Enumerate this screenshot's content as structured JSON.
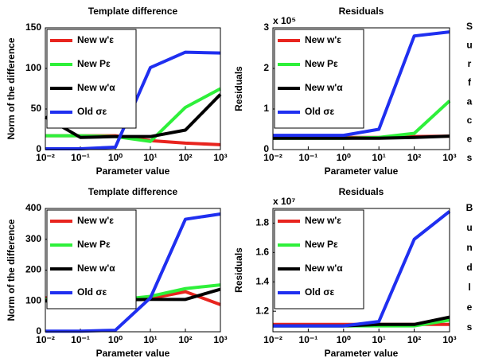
{
  "row_labels": [
    "Surfaces",
    "Bundles"
  ],
  "chart_data": [
    {
      "type": "line",
      "title": "Template difference",
      "xlabel": "Parameter value",
      "ylabel": "Norm of the difference",
      "xscale": "log",
      "x": [
        0.01,
        0.1,
        1,
        10,
        100,
        1000
      ],
      "xlim": [
        0.01,
        1000
      ],
      "xticks": [
        {
          "value": 0.01,
          "label": "10⁻²"
        },
        {
          "value": 0.1,
          "label": "10⁻¹"
        },
        {
          "value": 1,
          "label": "10⁰"
        },
        {
          "value": 10,
          "label": "10¹"
        },
        {
          "value": 100,
          "label": "10²"
        },
        {
          "value": 1000,
          "label": "10³"
        }
      ],
      "ylim": [
        0,
        150
      ],
      "yticks": [
        0,
        50,
        100,
        150
      ],
      "legend": "upper left",
      "series": [
        {
          "name": "New w'ε",
          "color": "#e8241e",
          "values": [
            17,
            17,
            17,
            11,
            8,
            6
          ]
        },
        {
          "name": "New Pε",
          "color": "#2ef03a",
          "values": [
            17,
            17,
            16,
            10,
            52,
            75
          ]
        },
        {
          "name": "New w'α",
          "color": "#000000",
          "values": [
            40,
            15,
            16,
            16,
            24,
            68
          ]
        },
        {
          "name": "Old σε",
          "color": "#1f2ff0",
          "values": [
            1,
            1,
            3,
            101,
            120,
            119
          ]
        }
      ]
    },
    {
      "type": "line",
      "title": "Residuals",
      "xlabel": "Parameter value",
      "ylabel": "Residuals",
      "y_multiplier": "x 10⁵",
      "xscale": "log",
      "x": [
        0.01,
        0.1,
        1,
        10,
        100,
        1000
      ],
      "xlim": [
        0.01,
        1000
      ],
      "xticks": [
        {
          "value": 0.01,
          "label": "10⁻²"
        },
        {
          "value": 0.1,
          "label": "10⁻¹"
        },
        {
          "value": 1,
          "label": "10⁰"
        },
        {
          "value": 10,
          "label": "10¹"
        },
        {
          "value": 100,
          "label": "10²"
        },
        {
          "value": 1000,
          "label": "10³"
        }
      ],
      "ylim": [
        0,
        3
      ],
      "yticks": [
        0,
        1,
        2,
        3
      ],
      "legend": "upper left",
      "series": [
        {
          "name": "New w'ε",
          "color": "#e8241e",
          "values": [
            0.3,
            0.3,
            0.3,
            0.3,
            0.32,
            0.33
          ]
        },
        {
          "name": "New Pε",
          "color": "#2ef03a",
          "values": [
            0.28,
            0.28,
            0.28,
            0.3,
            0.4,
            1.2
          ]
        },
        {
          "name": "New w'α",
          "color": "#000000",
          "values": [
            0.28,
            0.28,
            0.28,
            0.28,
            0.3,
            0.33
          ]
        },
        {
          "name": "Old σε",
          "color": "#1f2ff0",
          "values": [
            0.35,
            0.35,
            0.35,
            0.5,
            2.8,
            2.9
          ]
        }
      ]
    },
    {
      "type": "line",
      "title": "Template difference",
      "xlabel": "Parameter value",
      "ylabel": "Norm of the difference",
      "xscale": "log",
      "x": [
        0.01,
        0.1,
        1,
        10,
        100,
        1000
      ],
      "xlim": [
        0.01,
        1000
      ],
      "xticks": [
        {
          "value": 0.01,
          "label": "10⁻²"
        },
        {
          "value": 0.1,
          "label": "10⁻¹"
        },
        {
          "value": 1,
          "label": "10⁰"
        },
        {
          "value": 10,
          "label": "10¹"
        },
        {
          "value": 100,
          "label": "10²"
        },
        {
          "value": 1000,
          "label": "10³"
        }
      ],
      "ylim": [
        0,
        400
      ],
      "yticks": [
        0,
        100,
        200,
        300,
        400
      ],
      "legend": "upper left",
      "series": [
        {
          "name": "New w'ε",
          "color": "#e8241e",
          "values": [
            110,
            110,
            103,
            108,
            130,
            88
          ]
        },
        {
          "name": "New Pε",
          "color": "#2ef03a",
          "values": [
            105,
            105,
            103,
            115,
            140,
            152
          ]
        },
        {
          "name": "New w'α",
          "color": "#000000",
          "values": [
            100,
            103,
            103,
            105,
            105,
            138
          ]
        },
        {
          "name": "Old σε",
          "color": "#1f2ff0",
          "values": [
            2,
            2,
            5,
            110,
            365,
            382
          ]
        }
      ]
    },
    {
      "type": "line",
      "title": "Residuals",
      "xlabel": "Parameter value",
      "ylabel": "Residuals",
      "y_multiplier": "x 10⁷",
      "xscale": "log",
      "x": [
        0.01,
        0.1,
        1,
        10,
        100,
        1000
      ],
      "xlim": [
        0.01,
        1000
      ],
      "xticks": [
        {
          "value": 0.01,
          "label": "10⁻²"
        },
        {
          "value": 0.1,
          "label": "10⁻¹"
        },
        {
          "value": 1,
          "label": "10⁰"
        },
        {
          "value": 10,
          "label": "10¹"
        },
        {
          "value": 100,
          "label": "10²"
        },
        {
          "value": 1000,
          "label": "10³"
        }
      ],
      "ylim": [
        1.06,
        1.9
      ],
      "yticks": [
        1.2,
        1.4,
        1.6,
        1.8
      ],
      "legend": "upper left",
      "series": [
        {
          "name": "New w'ε",
          "color": "#e8241e",
          "values": [
            1.11,
            1.11,
            1.11,
            1.11,
            1.11,
            1.11
          ]
        },
        {
          "name": "New Pε",
          "color": "#2ef03a",
          "values": [
            1.1,
            1.1,
            1.1,
            1.1,
            1.1,
            1.14
          ]
        },
        {
          "name": "New w'α",
          "color": "#000000",
          "values": [
            1.1,
            1.1,
            1.1,
            1.11,
            1.11,
            1.16
          ]
        },
        {
          "name": "Old σε",
          "color": "#1f2ff0",
          "values": [
            1.1,
            1.1,
            1.1,
            1.13,
            1.69,
            1.88
          ]
        }
      ]
    }
  ]
}
